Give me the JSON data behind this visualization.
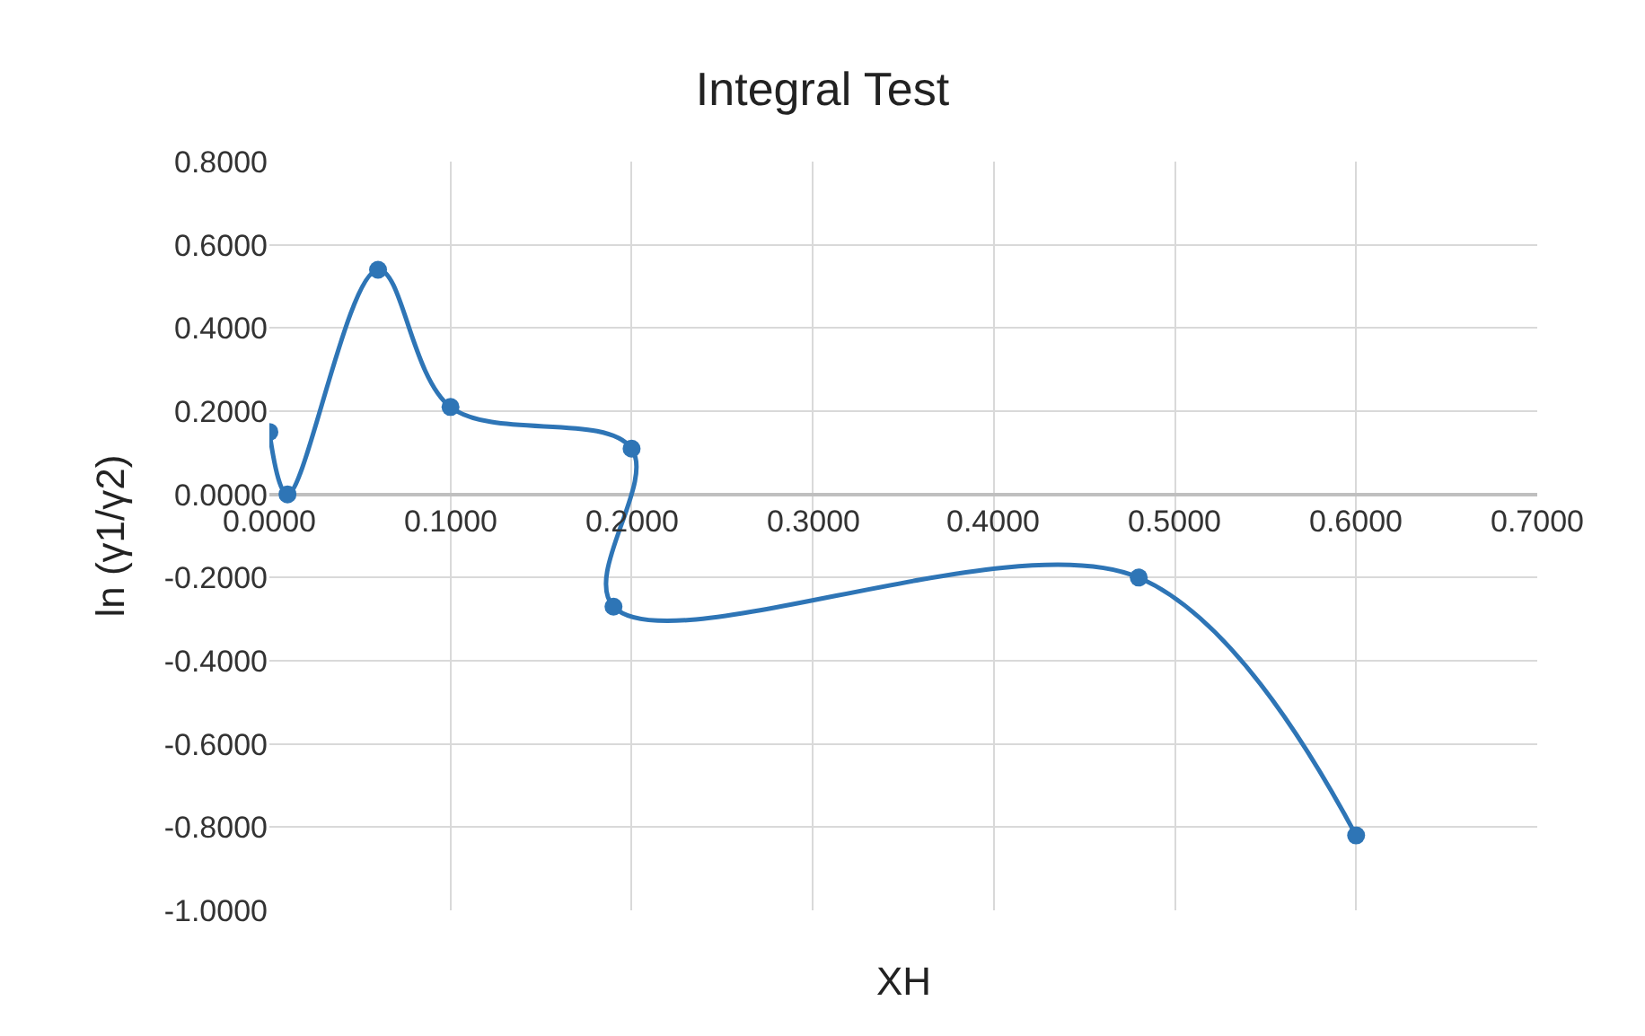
{
  "chart_data": {
    "type": "line",
    "title": "Integral Test",
    "xlabel": "XH",
    "ylabel": "ln (γ1/γ2)",
    "x": [
      0.0,
      0.01,
      0.06,
      0.1,
      0.2,
      0.19,
      0.48,
      0.6
    ],
    "series": [
      {
        "color": "#2e75b6",
        "values": [
          0.15,
          0.0,
          0.54,
          0.21,
          0.11,
          -0.27,
          -0.2,
          -0.82
        ]
      }
    ],
    "xlim": [
      0,
      0.7
    ],
    "xticks": [
      {
        "value": 0,
        "label": "0.0000"
      },
      {
        "value": 0.1,
        "label": "0.1000"
      },
      {
        "value": 0.2,
        "label": "0.2000"
      },
      {
        "value": 0.3,
        "label": "0.3000"
      },
      {
        "value": 0.4,
        "label": "0.4000"
      },
      {
        "value": 0.5,
        "label": "0.5000"
      },
      {
        "value": 0.6,
        "label": "0.6000"
      },
      {
        "value": 0.7,
        "label": "0.7000"
      }
    ],
    "ylim": [
      -1,
      0.8
    ],
    "yticks": [
      {
        "value": -1,
        "label": "-1.0000"
      },
      {
        "value": -0.8,
        "label": "-0.8000"
      },
      {
        "value": -0.6,
        "label": "-0.6000"
      },
      {
        "value": -0.4,
        "label": "-0.4000"
      },
      {
        "value": -0.2,
        "label": "-0.2000"
      },
      {
        "value": 0,
        "label": "0.0000"
      },
      {
        "value": 0.2,
        "label": "0.2000"
      },
      {
        "value": 0.4,
        "label": "0.4000"
      },
      {
        "value": 0.6,
        "label": "0.6000"
      },
      {
        "value": 0.8,
        "label": "0.8000"
      }
    ],
    "grid": true,
    "marker": "circle",
    "line_style": "solid"
  }
}
